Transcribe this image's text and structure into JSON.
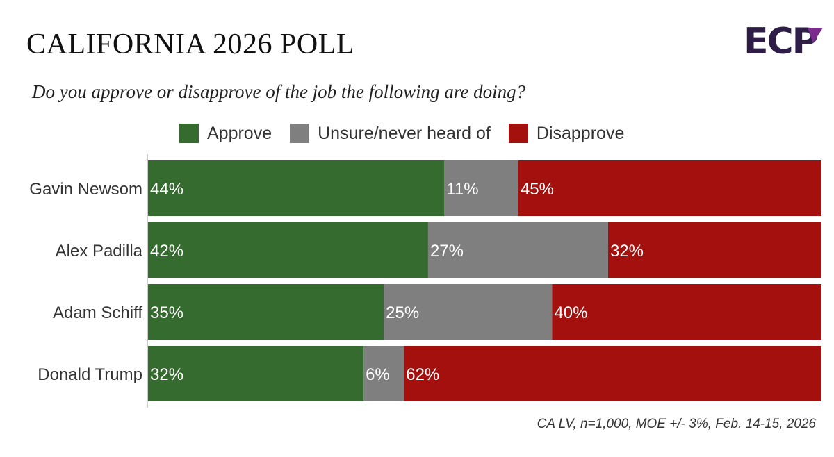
{
  "title": "CALIFORNIA 2026 POLL",
  "subtitle": "Do you approve or disapprove of the job the following are doing?",
  "logo": {
    "text": "ECP",
    "colors": {
      "primary": "#2e1d47",
      "accent": "#7b2d8e"
    }
  },
  "source": "CA LV, n=1,000, MOE +/- 3%, Feb. 14-15, 2026",
  "chart_data": {
    "type": "bar",
    "orientation": "horizontal",
    "stacked": true,
    "title": "CALIFORNIA 2026 POLL",
    "subtitle": "Do you approve or disapprove of the job the following are doing?",
    "categories": [
      "Gavin Newsom",
      "Alex Padilla",
      "Adam Schiff",
      "Donald Trump"
    ],
    "series": [
      {
        "name": "Approve",
        "color": "#356b2f",
        "values": [
          44,
          42,
          35,
          32
        ],
        "labels": [
          "44%",
          "42%",
          "35%",
          "32%"
        ]
      },
      {
        "name": "Unsure/never heard of",
        "color": "#7f7f7f",
        "values": [
          11,
          27,
          25,
          6
        ],
        "labels": [
          "11%",
          "27%",
          "25%",
          "6%"
        ]
      },
      {
        "name": "Disapprove",
        "color": "#a3100d",
        "values": [
          45,
          32,
          40,
          62
        ],
        "labels": [
          "45%",
          "32%",
          "40%",
          "62%"
        ]
      }
    ],
    "xlim": [
      0,
      100
    ],
    "xlabel": "",
    "ylabel": "",
    "grid": false,
    "legend": "top"
  }
}
